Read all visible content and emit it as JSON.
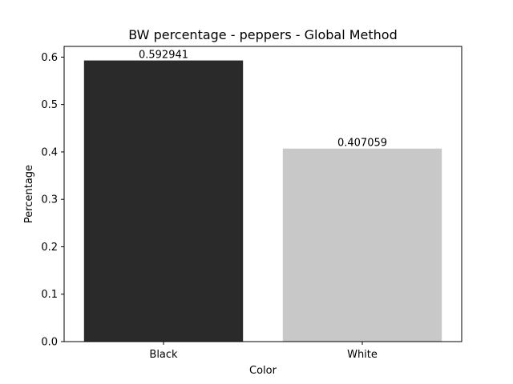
{
  "chart_data": {
    "type": "bar",
    "title": "BW percentage - peppers - Global Method",
    "xlabel": "Color",
    "ylabel": "Percentage",
    "categories": [
      "Black",
      "White"
    ],
    "values": [
      0.592941,
      0.407059
    ],
    "data_labels": [
      "0.592941",
      "0.407059"
    ],
    "colors": [
      "#2a2a2a",
      "#c8c8c8"
    ],
    "ylim": [
      0,
      0.622588
    ],
    "yticks": [
      0.0,
      0.1,
      0.2,
      0.3,
      0.4,
      0.5,
      0.6
    ],
    "ytick_labels": [
      "0.0",
      "0.1",
      "0.2",
      "0.3",
      "0.4",
      "0.5",
      "0.6"
    ],
    "grid": false,
    "legend": "none"
  }
}
